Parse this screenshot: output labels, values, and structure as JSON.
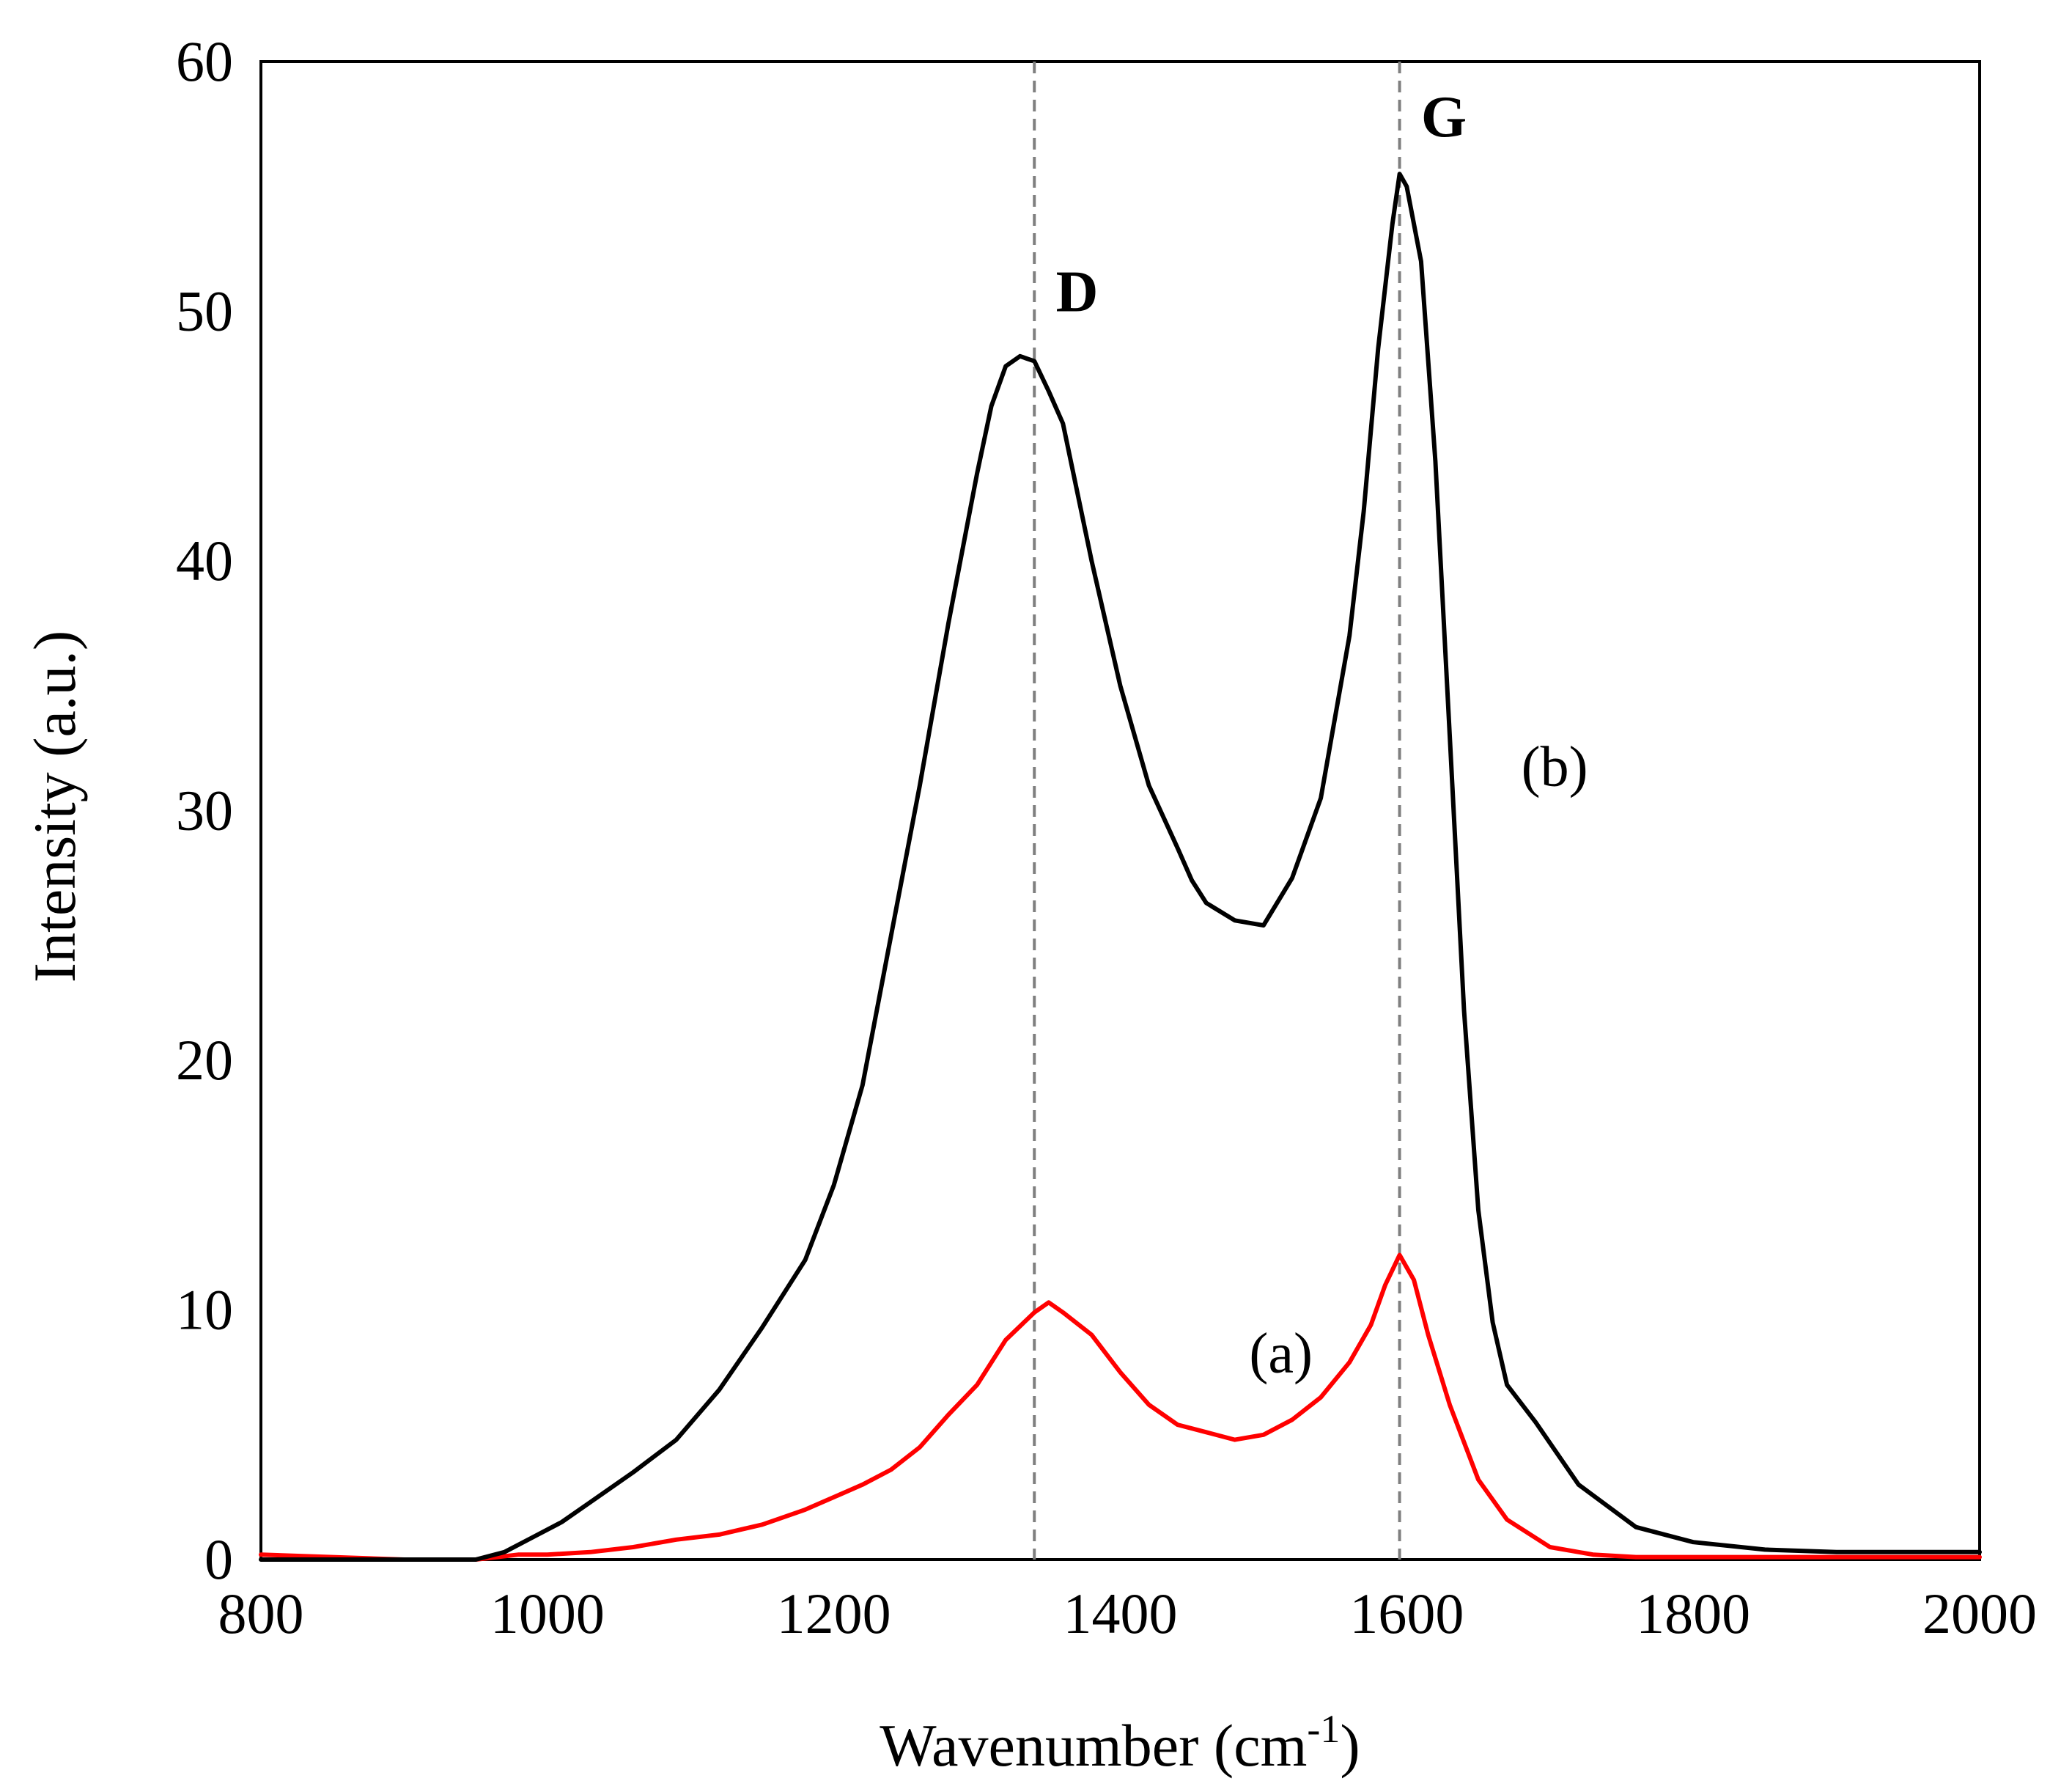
{
  "chart_data": {
    "type": "line",
    "title": "",
    "xlabel": "Wavenumber (cm",
    "xlabel_sup": "-1",
    "xlabel_close": ")",
    "ylabel": "Intensity (a.u.)",
    "xlim": [
      800,
      2000
    ],
    "ylim": [
      0,
      60
    ],
    "xticks": [
      800,
      1000,
      1200,
      1400,
      1600,
      1800,
      2000
    ],
    "yticks": [
      0,
      10,
      20,
      30,
      40,
      50,
      60
    ],
    "grid": false,
    "reference_lines": [
      {
        "x": 1340,
        "label": "D"
      },
      {
        "x": 1595,
        "label": "G"
      }
    ],
    "series": [
      {
        "name": "(a)",
        "color": "#ff0000",
        "x": [
          800,
          850,
          900,
          950,
          980,
          1000,
          1030,
          1060,
          1090,
          1120,
          1150,
          1180,
          1200,
          1220,
          1240,
          1260,
          1280,
          1300,
          1320,
          1340,
          1350,
          1360,
          1380,
          1400,
          1420,
          1440,
          1460,
          1480,
          1500,
          1520,
          1540,
          1560,
          1575,
          1585,
          1595,
          1605,
          1615,
          1630,
          1650,
          1670,
          1700,
          1730,
          1760,
          1800,
          1850,
          1900,
          1950,
          2000
        ],
        "values": [
          0.2,
          0.1,
          0.0,
          0.0,
          0.2,
          0.2,
          0.3,
          0.5,
          0.8,
          1.0,
          1.4,
          2.0,
          2.5,
          3.0,
          3.6,
          4.5,
          5.8,
          7.0,
          8.8,
          9.9,
          10.3,
          9.9,
          9.0,
          7.5,
          6.2,
          5.4,
          5.1,
          4.8,
          5.0,
          5.6,
          6.5,
          7.9,
          9.4,
          11.0,
          12.2,
          11.2,
          9.0,
          6.2,
          3.2,
          1.6,
          0.5,
          0.2,
          0.1,
          0.1,
          0.1,
          0.1,
          0.1,
          0.1
        ]
      },
      {
        "name": "(b)",
        "color": "#000000",
        "x": [
          800,
          850,
          900,
          950,
          970,
          990,
          1010,
          1030,
          1060,
          1090,
          1120,
          1150,
          1180,
          1200,
          1220,
          1240,
          1260,
          1280,
          1300,
          1310,
          1320,
          1330,
          1340,
          1350,
          1360,
          1380,
          1400,
          1420,
          1440,
          1450,
          1460,
          1480,
          1500,
          1520,
          1540,
          1560,
          1570,
          1580,
          1590,
          1595,
          1600,
          1610,
          1620,
          1630,
          1640,
          1650,
          1660,
          1670,
          1690,
          1720,
          1760,
          1800,
          1850,
          1900,
          2000
        ],
        "values": [
          0.0,
          0.0,
          0.0,
          0.0,
          0.3,
          0.9,
          1.5,
          2.3,
          3.5,
          4.8,
          6.8,
          9.3,
          12.0,
          15.0,
          19.0,
          25.0,
          31.0,
          37.5,
          43.5,
          46.2,
          47.8,
          48.2,
          48.0,
          46.8,
          45.5,
          40.0,
          35.0,
          31.0,
          28.5,
          27.2,
          26.3,
          25.6,
          25.4,
          27.3,
          30.5,
          37.0,
          42.0,
          48.5,
          53.5,
          55.5,
          55.0,
          52.0,
          44.0,
          33.0,
          22.0,
          14.0,
          9.5,
          7.0,
          5.5,
          3.0,
          1.3,
          0.7,
          0.4,
          0.3,
          0.3
        ]
      }
    ],
    "annotations": [
      {
        "text": "D",
        "x": 1355,
        "y": 50
      },
      {
        "text": "G",
        "x": 1610,
        "y": 57
      },
      {
        "text": "(b)",
        "x": 1680,
        "y": 31
      },
      {
        "text": "(a)",
        "x": 1490,
        "y": 7.5
      }
    ]
  }
}
